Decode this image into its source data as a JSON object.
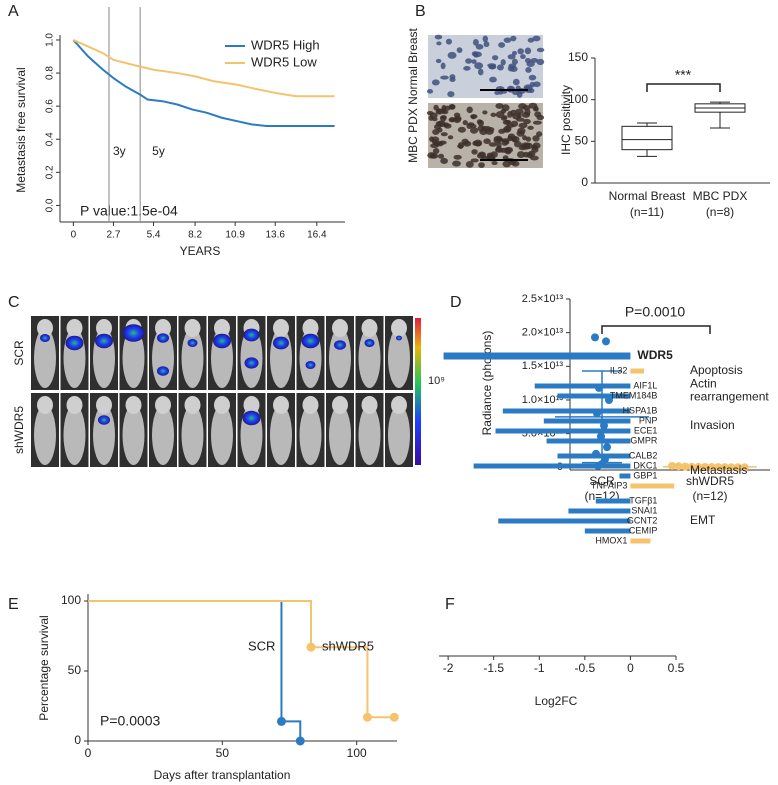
{
  "chart_data": [
    {
      "panel": "A",
      "type": "line",
      "xlabel": "YEARS",
      "ylabel": "Metastasis free survival",
      "xlim": [
        -0.9,
        18.3
      ],
      "xticks": [
        0,
        2.7,
        5.4,
        8.2,
        10.9,
        13.6,
        16.4
      ],
      "ylim": [
        -0.1,
        1.03
      ],
      "yticks": [
        {
          "value": 0,
          "label": "0.0"
        },
        0.2,
        0.4,
        0.6,
        0.8,
        {
          "value": 1,
          "label": "1.0"
        }
      ],
      "legend": "upper right",
      "series": [
        {
          "name": "WDR5 High",
          "color": "#2b7bc4",
          "x": [
            0,
            0.5,
            1,
            1.5,
            2,
            2.7,
            3.5,
            4.5,
            5,
            6,
            7,
            8,
            9,
            10,
            11,
            12,
            13,
            17.6
          ],
          "values": [
            1,
            0.95,
            0.9,
            0.86,
            0.82,
            0.77,
            0.72,
            0.67,
            0.64,
            0.63,
            0.61,
            0.58,
            0.56,
            0.53,
            0.51,
            0.49,
            0.48,
            0.48
          ]
        },
        {
          "name": "WDR5 Low",
          "color": "#f5c36e",
          "x": [
            0,
            1,
            2,
            2.7,
            4,
            5.4,
            7,
            8.2,
            9.5,
            11,
            12,
            13.6,
            15,
            17.6
          ],
          "values": [
            1,
            0.96,
            0.92,
            0.88,
            0.85,
            0.82,
            0.8,
            0.78,
            0.75,
            0.73,
            0.71,
            0.68,
            0.66,
            0.66
          ]
        }
      ],
      "reference_lines": [
        {
          "x": 2.4,
          "label": "3y"
        },
        {
          "x": 4.5,
          "label": "5y"
        }
      ],
      "annotation": "P value:1.5e-04"
    },
    {
      "panel": "B",
      "type": "box",
      "ylabel": "IHC positivity",
      "categories": [
        "Normal Breast",
        "MBC  PDX"
      ],
      "category_notes": [
        "(n=11)",
        "(n=8)"
      ],
      "min": [
        32,
        66
      ],
      "q1": [
        40,
        85
      ],
      "median": [
        52,
        90
      ],
      "q3": [
        68,
        95
      ],
      "max": [
        72,
        97
      ],
      "ylim": [
        0,
        150
      ],
      "yticks": [
        0,
        50,
        100,
        150
      ],
      "annotation": "***"
    },
    {
      "panel": "D",
      "type": "scatter",
      "ylabel": "Radiance (photons)",
      "categories": [
        "SCR",
        "shWDR5"
      ],
      "category_notes": [
        "(n=12)",
        "(n=12)"
      ],
      "colors": [
        "#2b7bc4",
        "#f5c36e"
      ],
      "values": [
        [
          19300000000000.0,
          18700000000000.0,
          11800000000000.0,
          10000000000000.0,
          8000000000000.0,
          6200000000000.0,
          4600000000000.0,
          3000000000000.0,
          2000000000000.0,
          1200000000000.0,
          500000000000.0,
          200000000000.0
        ],
        [
          200000000000.0,
          150000000000.0,
          100000000000.0,
          80000000000.0,
          60000000000.0,
          50000000000.0,
          40000000000.0,
          30000000000.0,
          20000000000.0,
          10000000000.0,
          5000000000.0,
          2000000000.0
        ]
      ],
      "means": [
        7500000000000.0,
        60000000000.0
      ],
      "sds": [
        6800000000000.0,
        60000000000.0
      ],
      "ylim": [
        -400000000000.0,
        25000000000000.0
      ],
      "yticks": [
        0,
        {
          "value": 5000000000000.0,
          "label": "5.0×10¹²"
        },
        {
          "value": 10000000000000.0,
          "label": "1.0×10¹³"
        },
        {
          "value": 15000000000000.0,
          "label": "1.5×10¹³"
        },
        {
          "value": 20000000000000.0,
          "label": "2.0×10¹³"
        },
        {
          "value": 25000000000000.0,
          "label": "2.5×10¹³"
        }
      ],
      "annotation": "P=0.0010"
    },
    {
      "panel": "E",
      "type": "line",
      "markers": true,
      "legend": "inline",
      "xlabel": "Days after transplantation",
      "ylabel": "Percentage survival",
      "xlim": [
        0,
        115
      ],
      "xticks": [
        0,
        50,
        100
      ],
      "ylim": [
        0,
        105
      ],
      "yticks": [
        0,
        50,
        100
      ],
      "series": [
        {
          "name": "SCR",
          "color": "#2b7bc4",
          "x": [
            0,
            72,
            72,
            79,
            79
          ],
          "values": [
            100,
            100,
            14,
            14,
            0
          ]
        },
        {
          "name": "shWDR5",
          "color": "#f5c36e",
          "x": [
            0,
            83,
            83,
            104,
            104,
            114
          ],
          "values": [
            100,
            100,
            67,
            67,
            17,
            17
          ]
        }
      ],
      "annotation": "P=0.0003"
    },
    {
      "panel": "F",
      "type": "bar",
      "orientation": "horizontal",
      "xlabel": "Log2FC",
      "xlim": [
        -2.1,
        0.5
      ],
      "xticks": [
        -2,
        -1.5,
        -1,
        -0.5,
        0,
        0.5
      ],
      "groups": [
        {
          "highlight": true,
          "categories": [
            "WDR5"
          ],
          "values": [
            -2.05
          ],
          "colors": [
            "#2b7bc4"
          ]
        },
        {
          "label": [
            "Apoptosis"
          ],
          "categories": [
            "IL32"
          ],
          "values": [
            0.15
          ],
          "colors": [
            "#f5c36e"
          ]
        },
        {
          "label": [
            "Actin",
            "rearrangement"
          ],
          "categories": [
            "AIF1L",
            "TMEM184B"
          ],
          "values": [
            -1.05,
            -0.8
          ],
          "colors": [
            "#2b7bc4",
            "#2b7bc4"
          ]
        },
        {
          "label": [
            "Invasion"
          ],
          "categories": [
            "HSPA1B",
            "PNP",
            "ECE1",
            "GMPR"
          ],
          "values": [
            -1.4,
            -0.95,
            -1.48,
            -0.92
          ],
          "colors": [
            "#2b7bc4",
            "#2b7bc4",
            "#2b7bc4",
            "#2b7bc4"
          ]
        },
        {
          "label": [
            "Metastasis"
          ],
          "categories": [
            "CALB2",
            "DKC1",
            "GBP1",
            "TNFAIP3"
          ],
          "values": [
            -0.8,
            -1.72,
            -0.12,
            0.48
          ],
          "colors": [
            "#2b7bc4",
            "#2b7bc4",
            "#2b7bc4",
            "#f5c36e"
          ]
        },
        {
          "label": [
            "EMT"
          ],
          "categories": [
            "TGFβ1",
            "SNAI1",
            "GCNT2",
            "CEMIP",
            "HMOX1"
          ],
          "values": [
            -0.38,
            -0.68,
            -1.45,
            -0.5,
            0.22
          ],
          "colors": [
            "#2b7bc4",
            "#2b7bc4",
            "#2b7bc4",
            "#2b7bc4",
            "#f5c36e"
          ]
        }
      ]
    }
  ],
  "panel_b_images": {
    "labels": [
      "Normal Breast",
      "MBC PDX"
    ]
  },
  "panel_c": {
    "panel": "C",
    "rows": [
      "SCR",
      "shWDR5"
    ],
    "colorbar_label": "10⁹"
  }
}
